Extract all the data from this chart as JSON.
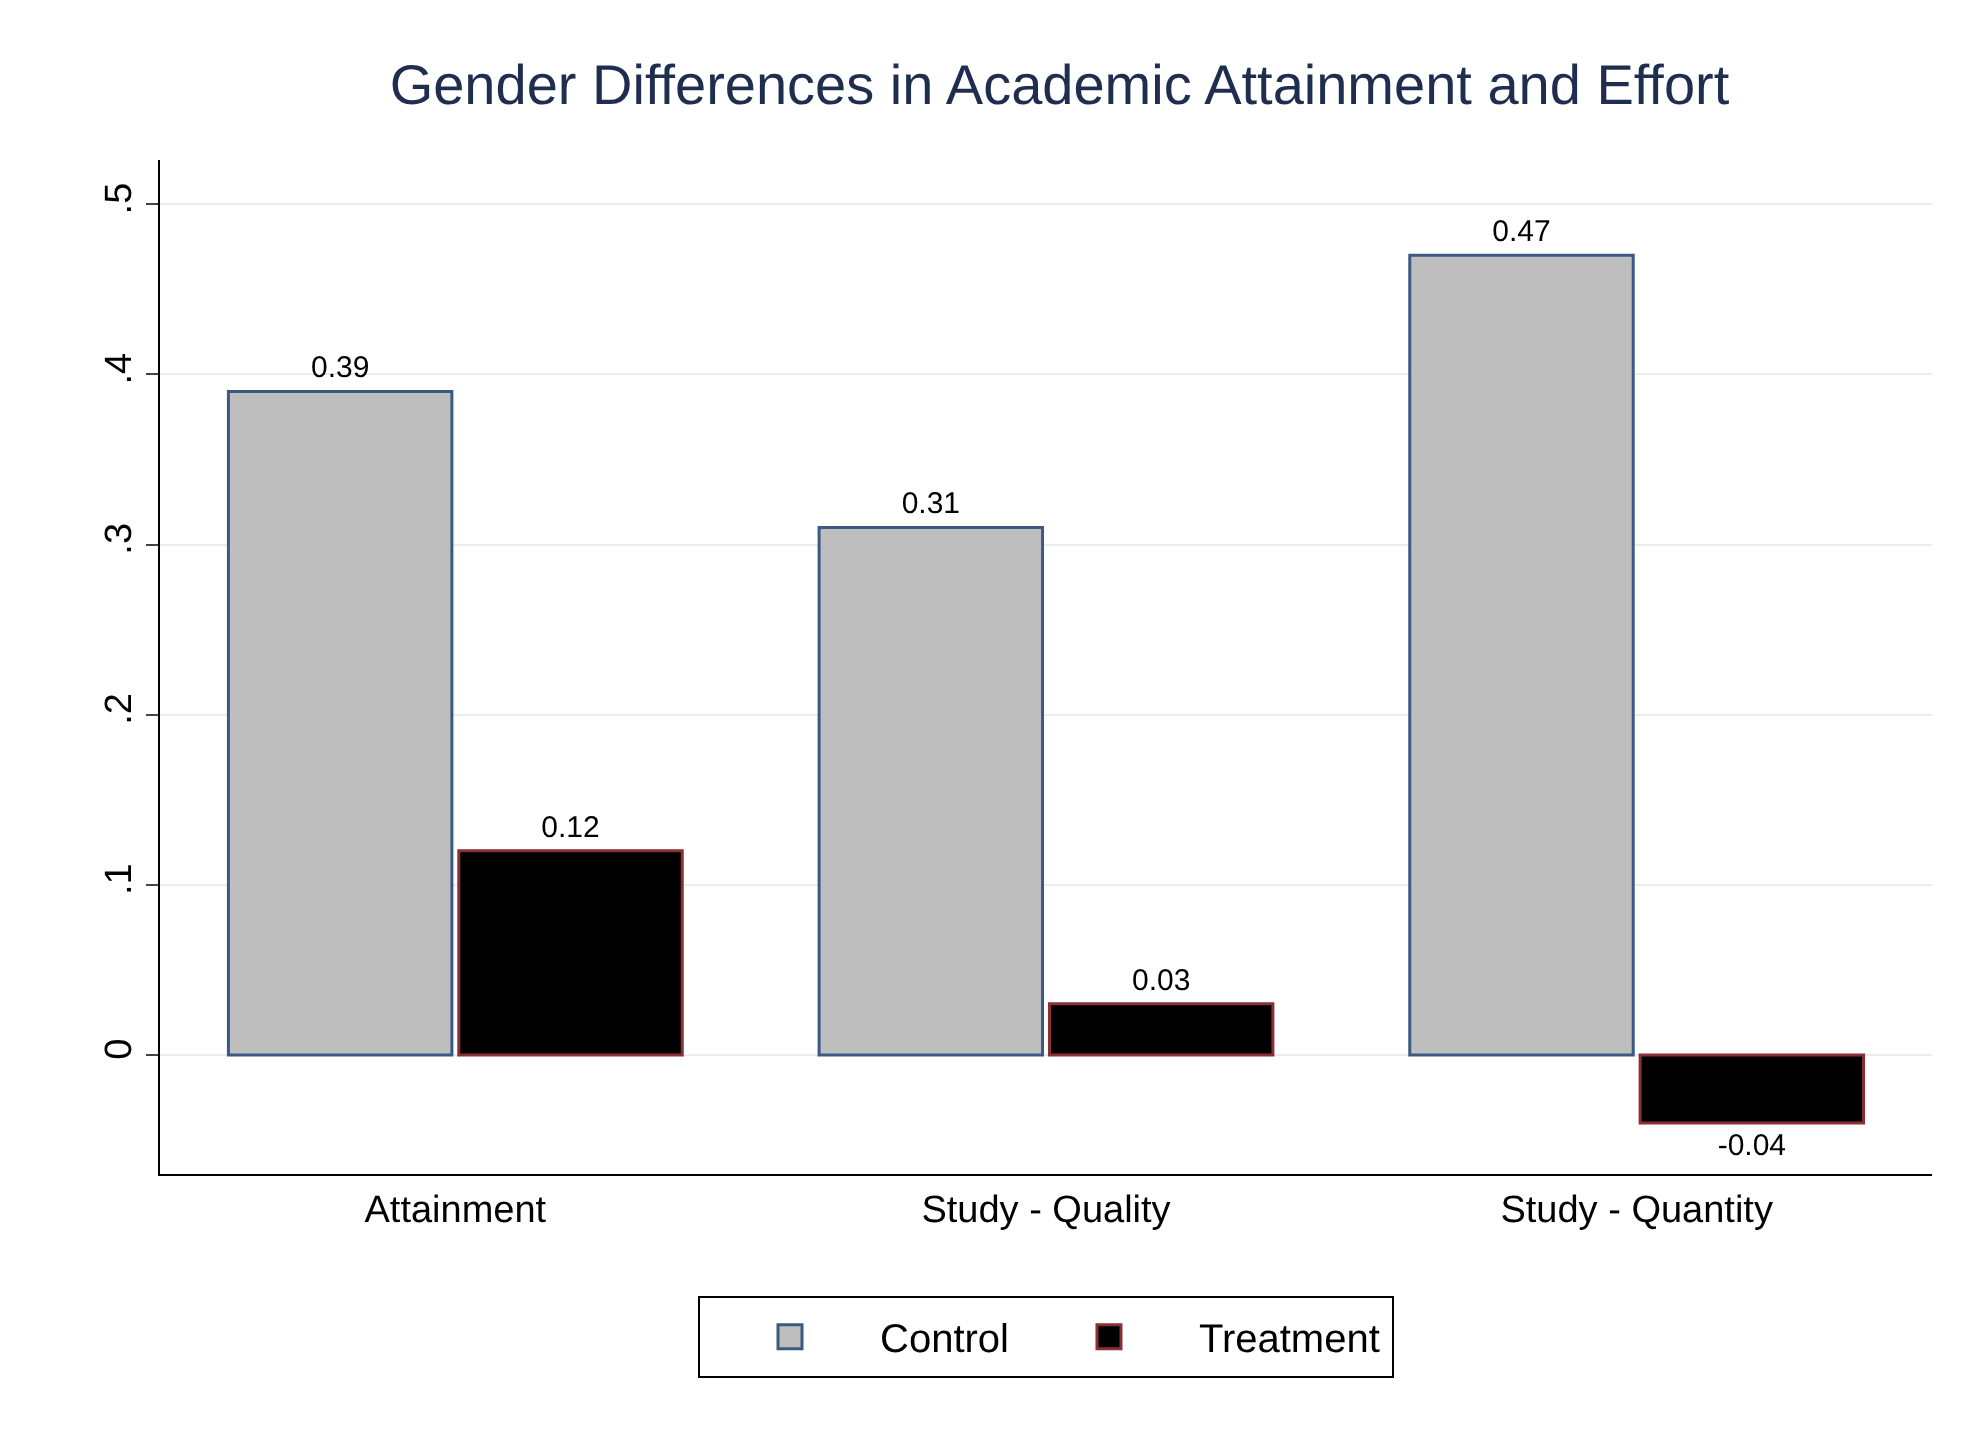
{
  "chart_data": {
    "type": "bar",
    "title": "Gender Differences in Academic Attainment and Effort",
    "categories": [
      "Attainment",
      "Study - Quality",
      "Study - Quantity"
    ],
    "series": [
      {
        "name": "Control",
        "color": "#bebebe",
        "values": [
          0.39,
          0.31,
          0.47
        ]
      },
      {
        "name": "Treatment",
        "color": "#000000",
        "values": [
          0.12,
          0.03,
          -0.04
        ]
      }
    ],
    "ylim": [
      -0.07,
      0.526
    ],
    "yticks": [
      0,
      {
        "value": 0.1,
        "label": ".1"
      },
      {
        "value": 0.2,
        "label": ".2"
      },
      {
        "value": 0.3,
        "label": ".3"
      },
      {
        "value": 0.4,
        "label": ".4"
      },
      {
        "value": 0.5,
        "label": ".5"
      }
    ],
    "grid": "y",
    "legend": "bottom",
    "data_labels": true
  }
}
